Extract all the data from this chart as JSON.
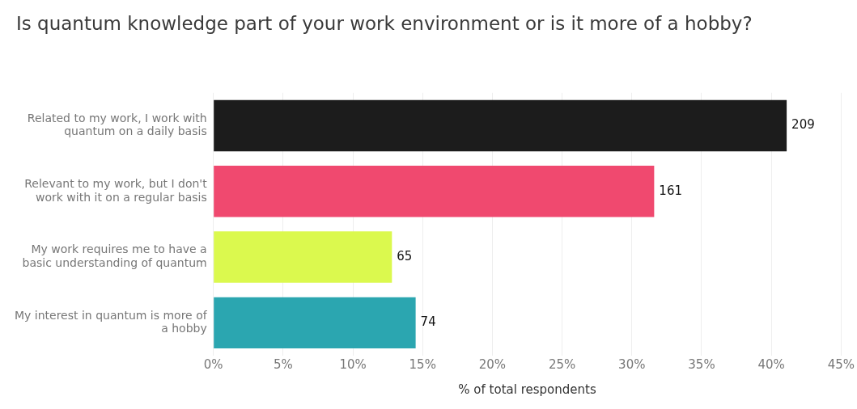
{
  "chart_data": {
    "type": "bar",
    "orientation": "horizontal",
    "title": "Is quantum knowledge part of your work environment or is it more of a hobby?",
    "xlabel": "% of total respondents",
    "categories": [
      "Related to my work, I work with quantum on a daily basis",
      "Relevant to my work, but I don't work with it on a regular basis",
      "My work requires me to have a basic understanding of quantum",
      "My interest in quantum is more of a hobby"
    ],
    "values": [
      41.1,
      31.6,
      12.8,
      14.5
    ],
    "colors": [
      "#1c1c1c",
      "#f0496f",
      "#dbf94e",
      "#2ba6b0"
    ],
    "annotations": [
      {
        "text": "209",
        "x": 41.1,
        "y": "Related to my work, I work with quantum on a daily basis"
      },
      {
        "text": "161",
        "x": 31.6,
        "y": "Relevant to my work, but I don't work with it on a regular basis"
      },
      {
        "text": "65",
        "x": 12.8,
        "y": "My work requires me to have a basic understanding of quantum"
      },
      {
        "text": "74",
        "x": 14.5,
        "y": "My interest in quantum is more of a hobby"
      }
    ],
    "xlim": [
      0,
      45
    ],
    "xticks": [
      {
        "value": 0,
        "label": "0%"
      },
      {
        "value": 5,
        "label": "5%"
      },
      {
        "value": 10,
        "label": "10%"
      },
      {
        "value": 15,
        "label": "15%"
      },
      {
        "value": 20,
        "label": "20%"
      },
      {
        "value": 25,
        "label": "25%"
      },
      {
        "value": 30,
        "label": "30%"
      },
      {
        "value": 35,
        "label": "35%"
      },
      {
        "value": 40,
        "label": "40%"
      },
      {
        "value": 45,
        "label": "45%"
      }
    ],
    "grid": "x",
    "legend": false
  }
}
